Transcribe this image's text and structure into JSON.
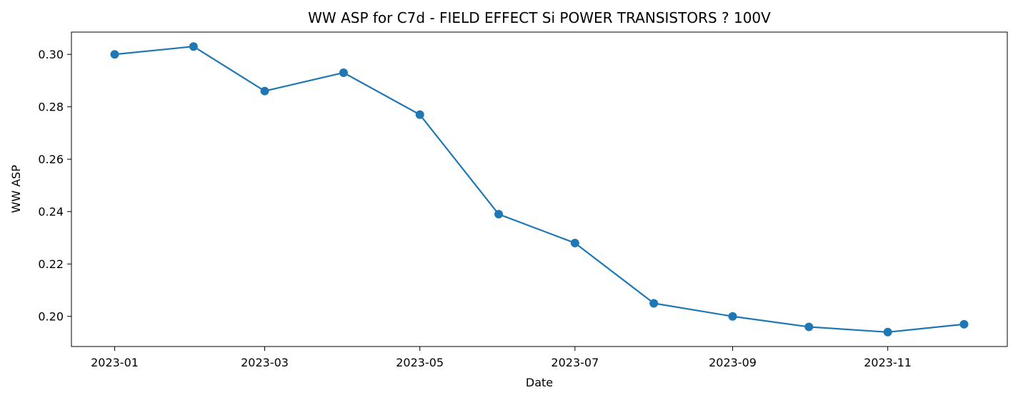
{
  "chart_data": {
    "type": "line",
    "title": "WW ASP for C7d - FIELD EFFECT Si POWER TRANSISTORS ? 100V",
    "xlabel": "Date",
    "ylabel": "WW ASP",
    "x": [
      "2023-01-01",
      "2023-02-01",
      "2023-03-01",
      "2023-04-01",
      "2023-05-01",
      "2023-06-01",
      "2023-07-01",
      "2023-08-01",
      "2023-09-01",
      "2023-10-01",
      "2023-11-01",
      "2023-12-01"
    ],
    "series": [
      {
        "values": [
          0.3,
          0.303,
          0.286,
          0.293,
          0.277,
          0.239,
          0.228,
          0.205,
          0.2,
          0.196,
          0.194,
          0.197
        ],
        "color": "#1f77b4",
        "marker": "circle"
      }
    ],
    "xlim": [
      "2022-12-15",
      "2023-12-18"
    ],
    "ylim": [
      0.1885,
      0.3085
    ],
    "x_ticks": [
      "2023-01",
      "2023-03",
      "2023-05",
      "2023-07",
      "2023-09",
      "2023-11"
    ],
    "y_ticks": [
      0.2,
      0.22,
      0.24,
      0.26,
      0.28,
      0.3
    ],
    "y_tick_labels": [
      "0.20",
      "0.22",
      "0.24",
      "0.26",
      "0.28",
      "0.30"
    ],
    "grid": false,
    "legend": false
  }
}
